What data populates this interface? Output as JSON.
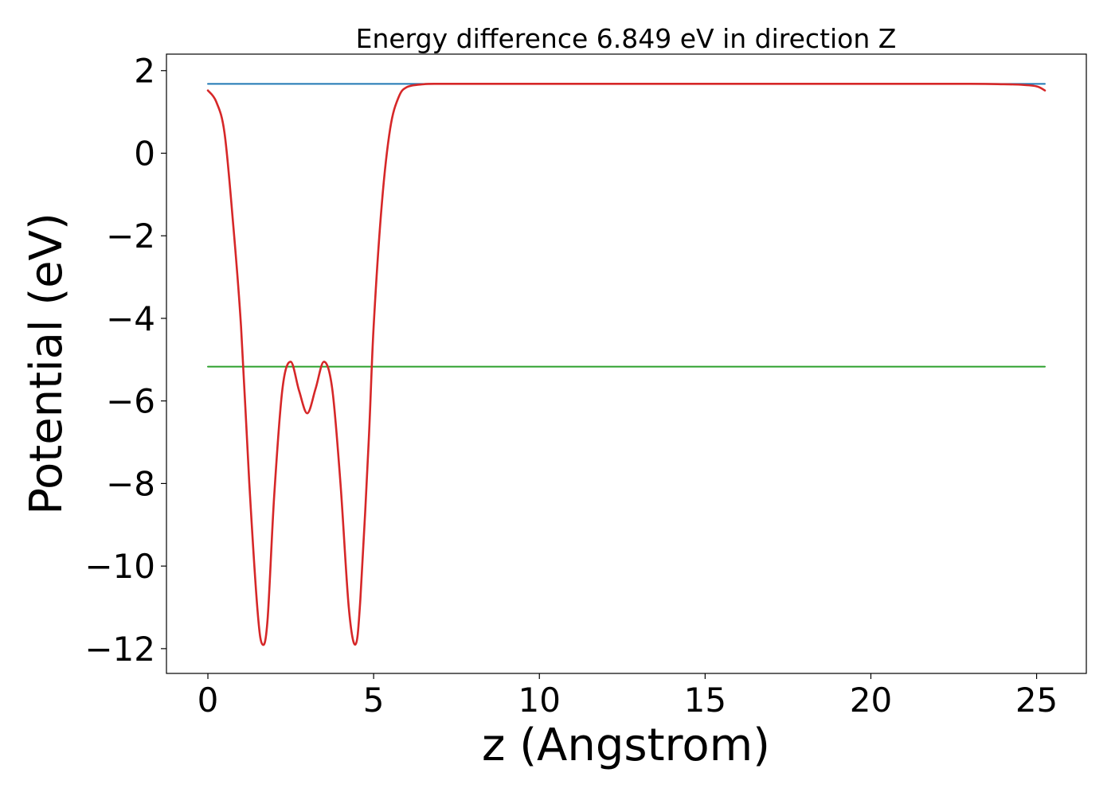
{
  "chart_data": {
    "type": "line",
    "title": "Energy difference 6.849 eV in direction Z",
    "xlabel": "z (Angstrom)",
    "ylabel": "Potential (eV)",
    "xlim": [
      -1.25,
      26.5
    ],
    "ylim": [
      -12.6,
      2.4
    ],
    "xticks": [
      0,
      5,
      10,
      15,
      20,
      25
    ],
    "xtick_labels": [
      "0",
      "5",
      "10",
      "15",
      "20",
      "25"
    ],
    "yticks": [
      2,
      0,
      -2,
      -4,
      -6,
      -8,
      -10,
      -12
    ],
    "ytick_labels": [
      "2",
      "0",
      "−2",
      "−4",
      "−6",
      "−8",
      "−10",
      "−12"
    ],
    "grid": false,
    "legend": "none",
    "series": [
      {
        "color": "#1f77b4",
        "kind": "hline",
        "x": [
          0,
          25.25
        ],
        "y": [
          1.68,
          1.68
        ]
      },
      {
        "color": "#2ca02c",
        "kind": "hline",
        "x": [
          0,
          25.25
        ],
        "y": [
          -5.17,
          -5.17
        ]
      },
      {
        "color": "#d62728",
        "kind": "curve",
        "x": [
          0,
          0.25,
          0.5,
          0.75,
          1.0,
          1.25,
          1.5,
          1.65,
          1.8,
          2.0,
          2.25,
          2.5,
          2.75,
          3.0,
          3.25,
          3.5,
          3.75,
          4.0,
          4.25,
          4.45,
          4.6,
          4.85,
          5.0,
          5.25,
          5.5,
          5.75,
          6.0,
          6.5,
          7.0,
          8.0,
          10.0,
          15.0,
          20.0,
          23.0,
          24.0,
          24.5,
          25.0,
          25.25
        ],
        "y": [
          1.52,
          1.25,
          0.5,
          -1.6,
          -4.2,
          -8.0,
          -11.1,
          -11.9,
          -11.3,
          -8.3,
          -5.7,
          -5.05,
          -5.75,
          -6.3,
          -5.7,
          -5.05,
          -5.7,
          -8.0,
          -11.0,
          -11.9,
          -10.8,
          -7.0,
          -4.2,
          -1.2,
          0.6,
          1.35,
          1.6,
          1.67,
          1.68,
          1.68,
          1.68,
          1.68,
          1.68,
          1.68,
          1.67,
          1.66,
          1.62,
          1.52
        ]
      }
    ]
  }
}
